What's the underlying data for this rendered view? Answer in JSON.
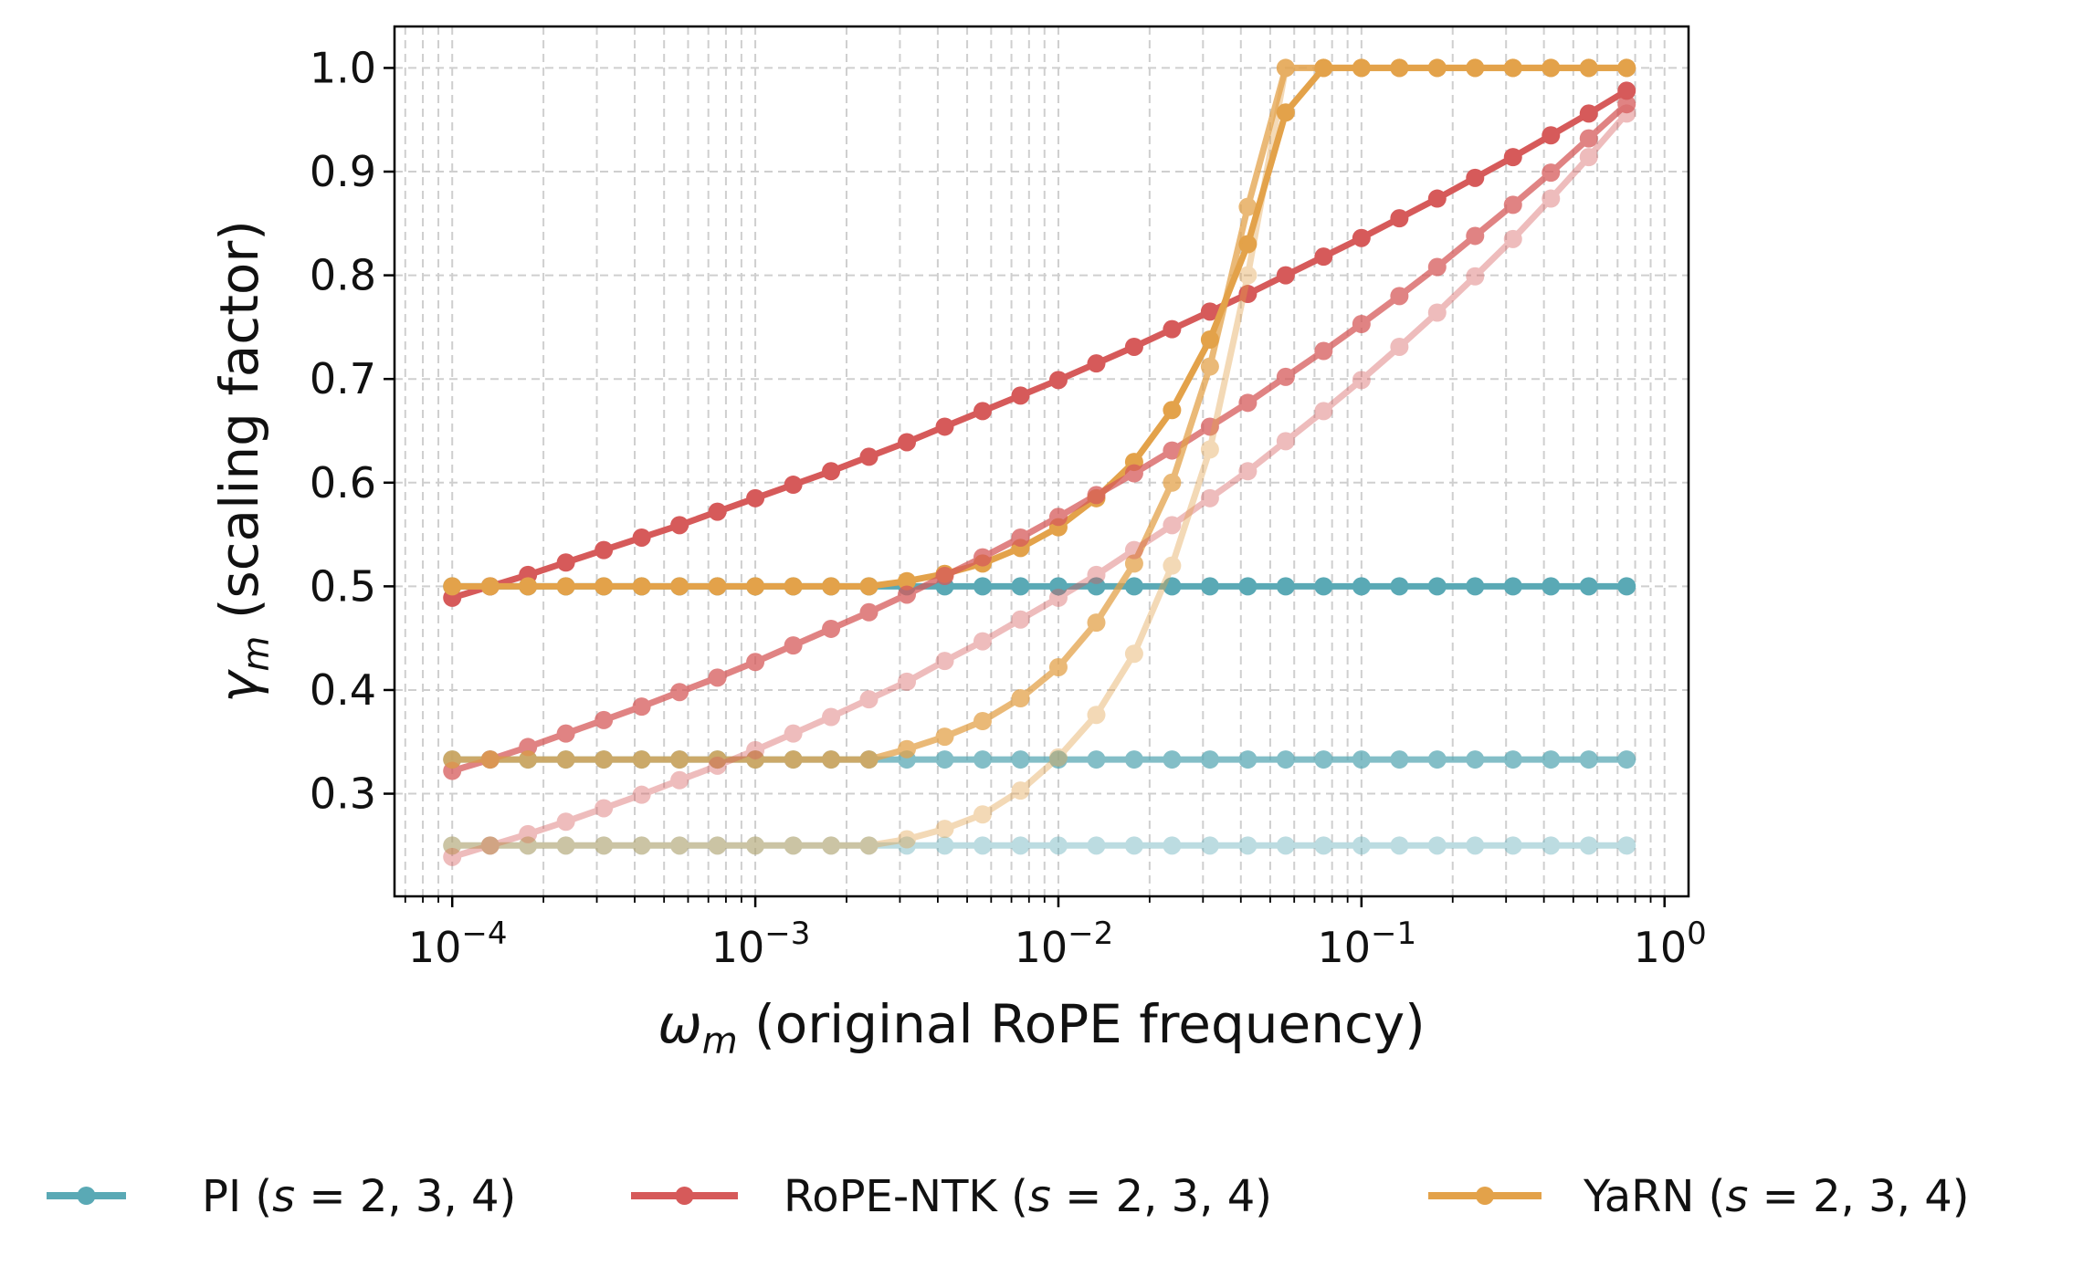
{
  "chart_data": {
    "type": "line",
    "xscale": "log",
    "xlim": [
      6.45e-05,
      1.2
    ],
    "ylim": [
      0.201,
      1.04
    ],
    "grid": true,
    "legend_placement": "bottom",
    "xlabel": {
      "symbol": "ω",
      "subscript": "m",
      "text": "(original RoPE frequency)"
    },
    "ylabel": {
      "symbol": "γ",
      "subscript": "m",
      "text": "(scaling factor)"
    },
    "xticks": [
      {
        "value": 0.0001,
        "base": "10",
        "exp": "−4"
      },
      {
        "value": 0.001,
        "base": "10",
        "exp": "−3"
      },
      {
        "value": 0.01,
        "base": "10",
        "exp": "−2"
      },
      {
        "value": 0.1,
        "base": "10",
        "exp": "−1"
      },
      {
        "value": 1,
        "base": "10",
        "exp": "0"
      }
    ],
    "yticks": [
      {
        "value": 0.3,
        "label": "0.3"
      },
      {
        "value": 0.4,
        "label": "0.4"
      },
      {
        "value": 0.5,
        "label": "0.5"
      },
      {
        "value": 0.6,
        "label": "0.6"
      },
      {
        "value": 0.7,
        "label": "0.7"
      },
      {
        "value": 0.8,
        "label": "0.8"
      },
      {
        "value": 0.9,
        "label": "0.9"
      },
      {
        "value": 1.0,
        "label": "1.0"
      }
    ],
    "x": [
      0.0001,
      0.0001334,
      0.0001778,
      0.0002371,
      0.0003162,
      0.0004217,
      0.0005623,
      0.0007499,
      0.001,
      0.001334,
      0.001778,
      0.002371,
      0.003162,
      0.004217,
      0.005623,
      0.007499,
      0.01,
      0.01334,
      0.01778,
      0.02371,
      0.03162,
      0.04217,
      0.05623,
      0.07499,
      0.1,
      0.1334,
      0.1778,
      0.2371,
      0.3162,
      0.4217,
      0.5623,
      0.7499
    ],
    "methods": [
      {
        "name": "PI",
        "color": "#5aa9b5",
        "legend": {
          "prefix": "PI (",
          "var": "s",
          "suffix": " = 2, 3, 4)"
        },
        "series": [
          {
            "s": 2,
            "opacity": 1.0,
            "values": [
              0.5,
              0.5,
              0.5,
              0.5,
              0.5,
              0.5,
              0.5,
              0.5,
              0.5,
              0.5,
              0.5,
              0.5,
              0.5,
              0.5,
              0.5,
              0.5,
              0.5,
              0.5,
              0.5,
              0.5,
              0.5,
              0.5,
              0.5,
              0.5,
              0.5,
              0.5,
              0.5,
              0.5,
              0.5,
              0.5,
              0.5,
              0.5
            ]
          },
          {
            "s": 3,
            "opacity": 0.75,
            "values": [
              0.333,
              0.333,
              0.333,
              0.333,
              0.333,
              0.333,
              0.333,
              0.333,
              0.333,
              0.333,
              0.333,
              0.333,
              0.333,
              0.333,
              0.333,
              0.333,
              0.333,
              0.333,
              0.333,
              0.333,
              0.333,
              0.333,
              0.333,
              0.333,
              0.333,
              0.333,
              0.333,
              0.333,
              0.333,
              0.333,
              0.333,
              0.333
            ]
          },
          {
            "s": 4,
            "opacity": 0.4,
            "values": [
              0.25,
              0.25,
              0.25,
              0.25,
              0.25,
              0.25,
              0.25,
              0.25,
              0.25,
              0.25,
              0.25,
              0.25,
              0.25,
              0.25,
              0.25,
              0.25,
              0.25,
              0.25,
              0.25,
              0.25,
              0.25,
              0.25,
              0.25,
              0.25,
              0.25,
              0.25,
              0.25,
              0.25,
              0.25,
              0.25,
              0.25,
              0.25
            ]
          }
        ]
      },
      {
        "name": "RoPE-NTK",
        "color": "#d65a5a",
        "legend": {
          "prefix": "RoPE-NTK (",
          "var": "s",
          "suffix": " = 2, 3, 4)"
        },
        "series": [
          {
            "s": 2,
            "opacity": 1.0,
            "values": [
              0.489,
              0.5,
              0.511,
              0.523,
              0.535,
              0.547,
              0.559,
              0.572,
              0.585,
              0.598,
              0.611,
              0.625,
              0.639,
              0.654,
              0.669,
              0.684,
              0.699,
              0.715,
              0.731,
              0.748,
              0.765,
              0.782,
              0.8,
              0.818,
              0.836,
              0.855,
              0.874,
              0.894,
              0.914,
              0.935,
              0.956,
              0.978
            ]
          },
          {
            "s": 3,
            "opacity": 0.75,
            "values": [
              0.322,
              0.333,
              0.345,
              0.358,
              0.371,
              0.384,
              0.398,
              0.412,
              0.427,
              0.443,
              0.459,
              0.475,
              0.492,
              0.51,
              0.528,
              0.547,
              0.567,
              0.588,
              0.609,
              0.631,
              0.654,
              0.677,
              0.702,
              0.727,
              0.753,
              0.78,
              0.808,
              0.838,
              0.868,
              0.899,
              0.932,
              0.965
            ]
          },
          {
            "s": 4,
            "opacity": 0.4,
            "values": [
              0.239,
              0.25,
              0.261,
              0.273,
              0.286,
              0.299,
              0.313,
              0.327,
              0.342,
              0.358,
              0.374,
              0.391,
              0.408,
              0.428,
              0.447,
              0.468,
              0.489,
              0.511,
              0.535,
              0.559,
              0.585,
              0.611,
              0.64,
              0.669,
              0.699,
              0.731,
              0.764,
              0.799,
              0.835,
              0.874,
              0.914,
              0.956
            ]
          }
        ]
      },
      {
        "name": "YaRN",
        "color": "#e3a24a",
        "legend": {
          "prefix": "YaRN (",
          "var": "s",
          "suffix": " = 2, 3, 4)"
        },
        "series": [
          {
            "s": 2,
            "opacity": 1.0,
            "values": [
              0.5,
              0.5,
              0.5,
              0.5,
              0.5,
              0.5,
              0.5,
              0.5,
              0.5,
              0.5,
              0.5,
              0.5,
              0.505,
              0.512,
              0.522,
              0.537,
              0.557,
              0.585,
              0.62,
              0.67,
              0.738,
              0.83,
              0.957,
              1,
              1,
              1,
              1,
              1,
              1,
              1,
              1,
              1
            ]
          },
          {
            "s": 3,
            "opacity": 0.75,
            "values": [
              0.333,
              0.333,
              0.333,
              0.333,
              0.333,
              0.333,
              0.333,
              0.333,
              0.333,
              0.333,
              0.333,
              0.333,
              0.343,
              0.355,
              0.37,
              0.392,
              0.422,
              0.465,
              0.522,
              0.6,
              0.712,
              0.866,
              1,
              1,
              1,
              1,
              1,
              1,
              1,
              1,
              1,
              1
            ]
          },
          {
            "s": 4,
            "opacity": 0.4,
            "values": [
              0.25,
              0.25,
              0.25,
              0.25,
              0.25,
              0.25,
              0.25,
              0.25,
              0.25,
              0.25,
              0.25,
              0.25,
              0.256,
              0.266,
              0.28,
              0.303,
              0.335,
              0.376,
              0.435,
              0.52,
              0.632,
              0.8,
              1,
              1,
              1,
              1,
              1,
              1,
              1,
              1,
              1,
              1
            ]
          }
        ]
      }
    ]
  }
}
